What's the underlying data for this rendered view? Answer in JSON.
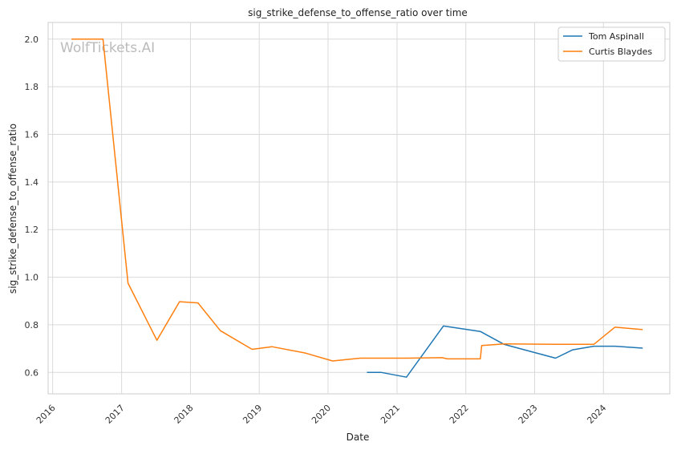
{
  "chart_data": {
    "type": "line",
    "title": "sig_strike_defense_to_offense_ratio over time",
    "xlabel": "Date",
    "ylabel": "sig_strike_defense_to_offense_ratio",
    "watermark": "WolfTickets.AI",
    "x_ticks": [
      "2016",
      "2017",
      "2018",
      "2019",
      "2020",
      "2021",
      "2022",
      "2023",
      "2024"
    ],
    "y_ticks": [
      "0.6",
      "0.8",
      "1.0",
      "1.2",
      "1.4",
      "1.6",
      "1.8",
      "2.0"
    ],
    "xlim": [
      "2015-12-08",
      "2024-12-18"
    ],
    "ylim": [
      0.51,
      2.07
    ],
    "grid": true,
    "legend_position": "top-right",
    "series": [
      {
        "name": "Tom Aspinall",
        "color": "#1f77b4",
        "points": [
          [
            "2020-07-25",
            0.6
          ],
          [
            "2020-10-10",
            0.6
          ],
          [
            "2021-02-20",
            0.58
          ],
          [
            "2021-09-04",
            0.795
          ],
          [
            "2022-03-19",
            0.772
          ],
          [
            "2022-07-23",
            0.718
          ],
          [
            "2023-04-22",
            0.66
          ],
          [
            "2023-07-22",
            0.695
          ],
          [
            "2023-11-11",
            0.71
          ],
          [
            "2024-03-02",
            0.71
          ],
          [
            "2024-07-27",
            0.702
          ]
        ]
      },
      {
        "name": "Curtis Blaydes",
        "color": "#ff7f0e",
        "points": [
          [
            "2016-04-10",
            2.0
          ],
          [
            "2016-09-24",
            2.0
          ],
          [
            "2017-02-04",
            0.975
          ],
          [
            "2017-07-07",
            0.735
          ],
          [
            "2017-11-04",
            0.897
          ],
          [
            "2018-02-10",
            0.892
          ],
          [
            "2018-06-09",
            0.775
          ],
          [
            "2018-11-24",
            0.697
          ],
          [
            "2019-03-09",
            0.708
          ],
          [
            "2019-08-31",
            0.682
          ],
          [
            "2020-01-25",
            0.648
          ],
          [
            "2020-06-20",
            0.66
          ],
          [
            "2021-02-20",
            0.66
          ],
          [
            "2021-08-28",
            0.662
          ],
          [
            "2021-09-25",
            0.657
          ],
          [
            "2022-03-19",
            0.657
          ],
          [
            "2022-03-26",
            0.713
          ],
          [
            "2022-07-23",
            0.72
          ],
          [
            "2023-04-22",
            0.718
          ],
          [
            "2023-11-11",
            0.718
          ],
          [
            "2024-03-02",
            0.79
          ],
          [
            "2024-07-27",
            0.78
          ]
        ]
      }
    ]
  }
}
